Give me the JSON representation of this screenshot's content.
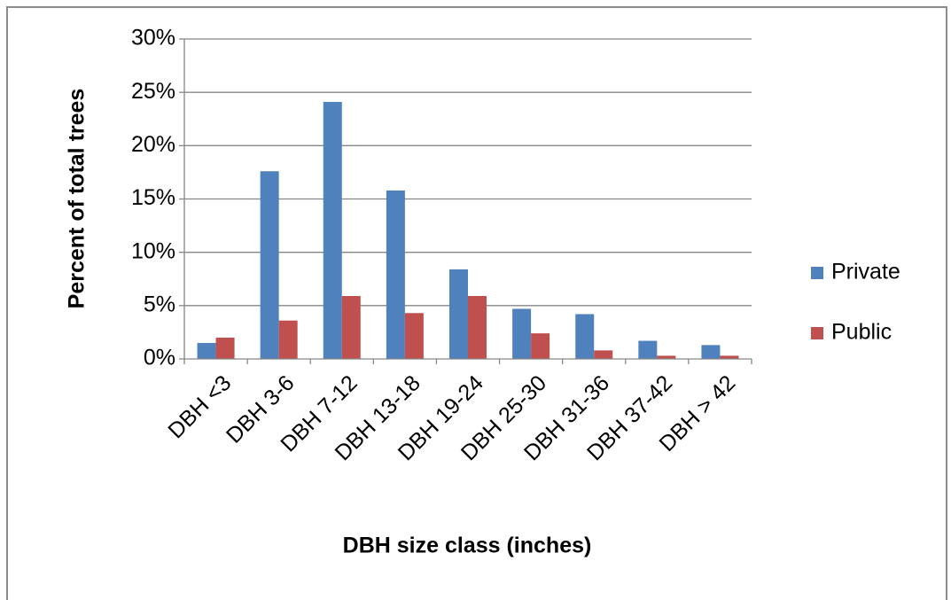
{
  "chart_data": {
    "type": "bar",
    "categories": [
      "DBH <3",
      "DBH 3-6",
      "DBH 7-12",
      "DBH 13-18",
      "DBH 19-24",
      "DBH 25-30",
      "DBH 31-36",
      "DBH 37-42",
      "DBH > 42"
    ],
    "series": [
      {
        "name": "Private",
        "color": "#4f81bd",
        "values": [
          1.5,
          17.6,
          24.1,
          15.8,
          8.4,
          4.7,
          4.2,
          1.7,
          1.3
        ]
      },
      {
        "name": "Public",
        "color": "#c0504d",
        "values": [
          2.0,
          3.6,
          5.9,
          4.3,
          5.9,
          2.4,
          0.8,
          0.3,
          0.3
        ]
      }
    ],
    "ylim": [
      0,
      30
    ],
    "yticks": [
      "0%",
      "5%",
      "10%",
      "15%",
      "20%",
      "25%",
      "30%"
    ],
    "ytick_values": [
      0,
      5,
      10,
      15,
      20,
      25,
      30
    ],
    "xlabel": "DBH size class (inches)",
    "ylabel": "Percent of total trees",
    "grid": true,
    "legend_position": "right"
  }
}
